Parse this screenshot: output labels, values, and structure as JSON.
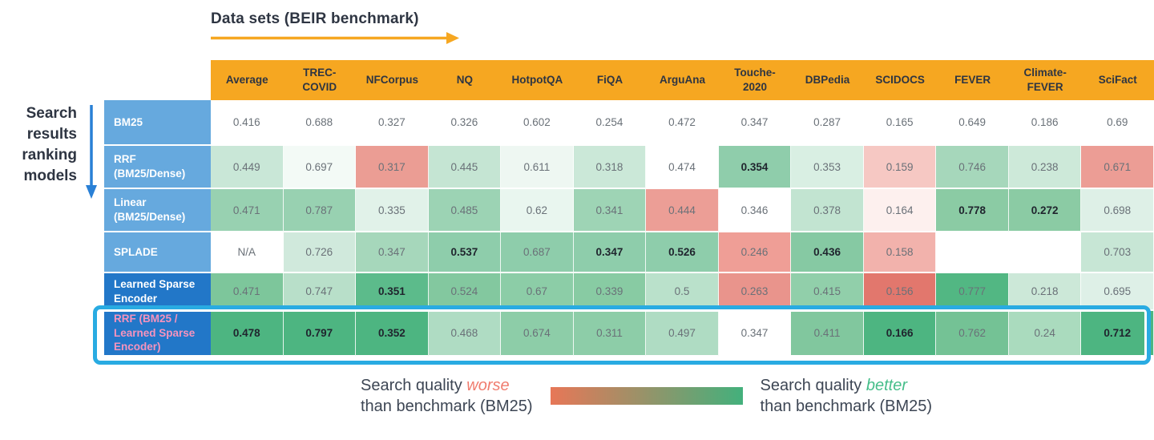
{
  "colors": {
    "header_bg": "#F6A721",
    "header_text": "#2E3542",
    "label_bg_light": "#66A9DE",
    "label_bg_dark": "#2277C8",
    "label_text": "#FFFFFF",
    "label_text_pink": "#F693BD",
    "highlight_border": "#29ABE2",
    "value_text": "#6A7178",
    "value_text_bold": "#20252E",
    "top_arrow": "#F6A721",
    "left_arrow": "#2980D6",
    "legend_text": "#3D4654",
    "legend_worse": "#F07C6E",
    "legend_better": "#46BE8A",
    "gradient_start": "#E77757",
    "gradient_end": "#43B07C"
  },
  "top_axis": {
    "title": "Data sets (BEIR benchmark)"
  },
  "left_axis": {
    "title": "Search results ranking models"
  },
  "legend": {
    "worse": {
      "prefix": "Search quality ",
      "word": "worse",
      "suffix": "than benchmark (BM25)"
    },
    "better": {
      "prefix": "Search quality ",
      "word": "better",
      "suffix": "than benchmark (BM25)"
    }
  },
  "chart_data": {
    "type": "heatmap",
    "title": "Data sets (BEIR benchmark)",
    "row_axis_label": "Search results ranking models",
    "benchmark_note": "Cell color encodes search quality vs BM25 benchmark (red = worse, green = better)",
    "columns": [
      "Average",
      "TREC-COVID",
      "NFCorpus",
      "NQ",
      "HotpotQA",
      "FiQA",
      "ArguAna",
      "Touche-2020",
      "DBPedia",
      "SCIDOCS",
      "FEVER",
      "Climate-FEVER",
      "SciFact"
    ],
    "highlighted_row": "RRF (BM25 / Learned Sparse Encoder)",
    "rows": [
      {
        "label": "BM25",
        "label_style": "light",
        "label_pink": false,
        "cells": [
          {
            "v": "0.416",
            "c": "#FFFFFF",
            "b": false
          },
          {
            "v": "0.688",
            "c": "#FFFFFF",
            "b": false
          },
          {
            "v": "0.327",
            "c": "#FFFFFF",
            "b": false
          },
          {
            "v": "0.326",
            "c": "#FFFFFF",
            "b": false
          },
          {
            "v": "0.602",
            "c": "#FFFFFF",
            "b": false
          },
          {
            "v": "0.254",
            "c": "#FFFFFF",
            "b": false
          },
          {
            "v": "0.472",
            "c": "#FFFFFF",
            "b": false
          },
          {
            "v": "0.347",
            "c": "#FFFFFF",
            "b": false
          },
          {
            "v": "0.287",
            "c": "#FFFFFF",
            "b": false
          },
          {
            "v": "0.165",
            "c": "#FFFFFF",
            "b": false
          },
          {
            "v": "0.649",
            "c": "#FFFFFF",
            "b": false
          },
          {
            "v": "0.186",
            "c": "#FFFFFF",
            "b": false
          },
          {
            "v": "0.69",
            "c": "#FFFFFF",
            "b": false
          }
        ]
      },
      {
        "label": "RRF (BM25/Dense)",
        "label_style": "light",
        "label_pink": false,
        "cells": [
          {
            "v": "0.449",
            "c": "#C9E7D7",
            "b": false
          },
          {
            "v": "0.697",
            "c": "#F3FAF6",
            "b": false
          },
          {
            "v": "0.317",
            "c": "#EB9D94",
            "b": false
          },
          {
            "v": "0.445",
            "c": "#C5E5D3",
            "b": false
          },
          {
            "v": "0.611",
            "c": "#EEF7F2",
            "b": false
          },
          {
            "v": "0.318",
            "c": "#CBE8D8",
            "b": false
          },
          {
            "v": "0.474",
            "c": "#FFFFFF",
            "b": false
          },
          {
            "v": "0.354",
            "c": "#8FCDAB",
            "b": true
          },
          {
            "v": "0.353",
            "c": "#D9EFE3",
            "b": false
          },
          {
            "v": "0.159",
            "c": "#F6C8C3",
            "b": false
          },
          {
            "v": "0.746",
            "c": "#A6D7BB",
            "b": false
          },
          {
            "v": "0.238",
            "c": "#CDE9D9",
            "b": false
          },
          {
            "v": "0.671",
            "c": "#EC9D95",
            "b": false
          }
        ]
      },
      {
        "label": "Linear (BM25/Dense)",
        "label_style": "light",
        "label_pink": false,
        "cells": [
          {
            "v": "0.471",
            "c": "#98D1B1",
            "b": false
          },
          {
            "v": "0.787",
            "c": "#98D1B1",
            "b": false
          },
          {
            "v": "0.335",
            "c": "#E1F2E9",
            "b": false
          },
          {
            "v": "0.485",
            "c": "#9CD3B4",
            "b": false
          },
          {
            "v": "0.62",
            "c": "#E9F6EF",
            "b": false
          },
          {
            "v": "0.341",
            "c": "#9ED4B5",
            "b": false
          },
          {
            "v": "0.444",
            "c": "#EC9E96",
            "b": false
          },
          {
            "v": "0.346",
            "c": "#FFFFFF",
            "b": false
          },
          {
            "v": "0.378",
            "c": "#C2E4D1",
            "b": false
          },
          {
            "v": "0.164",
            "c": "#FDF0EE",
            "b": false
          },
          {
            "v": "0.778",
            "c": "#8BCBA4",
            "b": true
          },
          {
            "v": "0.272",
            "c": "#8BCBA4",
            "b": true
          },
          {
            "v": "0.698",
            "c": "#DEF0E7",
            "b": false
          }
        ]
      },
      {
        "label": "SPLADE",
        "label_style": "light",
        "label_pink": false,
        "cells": [
          {
            "v": "N/A",
            "c": "#FFFFFF",
            "b": false
          },
          {
            "v": "0.726",
            "c": "#D0E9DC",
            "b": false
          },
          {
            "v": "0.347",
            "c": "#A6D7BB",
            "b": false
          },
          {
            "v": "0.537",
            "c": "#8ECDAB",
            "b": true
          },
          {
            "v": "0.687",
            "c": "#8ECDAB",
            "b": false
          },
          {
            "v": "0.347",
            "c": "#8ECDAB",
            "b": true
          },
          {
            "v": "0.526",
            "c": "#8ECDAB",
            "b": true
          },
          {
            "v": "0.246",
            "c": "#EF9E96",
            "b": false
          },
          {
            "v": "0.436",
            "c": "#86C9A3",
            "b": true
          },
          {
            "v": "0.158",
            "c": "#F2B2AC",
            "b": false
          },
          {
            "v": "",
            "c": "#FFFFFF",
            "b": false
          },
          {
            "v": "",
            "c": "#FFFFFF",
            "b": false
          },
          {
            "v": "0.703",
            "c": "#C7E6D5",
            "b": false
          }
        ]
      },
      {
        "label": "Learned Sparse Encoder",
        "label_style": "dark",
        "label_pink": false,
        "cells": [
          {
            "v": "0.471",
            "c": "#7DC69B",
            "b": false
          },
          {
            "v": "0.747",
            "c": "#B8DFC9",
            "b": false
          },
          {
            "v": "0.351",
            "c": "#5CBB8B",
            "b": true
          },
          {
            "v": "0.524",
            "c": "#83C89F",
            "b": false
          },
          {
            "v": "0.67",
            "c": "#8CCDA7",
            "b": false
          },
          {
            "v": "0.339",
            "c": "#88CBA3",
            "b": false
          },
          {
            "v": "0.5",
            "c": "#BAE1CB",
            "b": false
          },
          {
            "v": "0.263",
            "c": "#E9948C",
            "b": false
          },
          {
            "v": "0.415",
            "c": "#91CFAA",
            "b": false
          },
          {
            "v": "0.156",
            "c": "#E2776D",
            "b": false
          },
          {
            "v": "0.777",
            "c": "#52B783",
            "b": false
          },
          {
            "v": "0.218",
            "c": "#CCE8D8",
            "b": false
          },
          {
            "v": "0.695",
            "c": "#DEF0E7",
            "b": false
          }
        ]
      },
      {
        "label": "RRF (BM25 / Learned Sparse Encoder)",
        "label_style": "dark",
        "label_pink": true,
        "cells": [
          {
            "v": "0.478",
            "c": "#4DB581",
            "b": true
          },
          {
            "v": "0.797",
            "c": "#4DB581",
            "b": true
          },
          {
            "v": "0.352",
            "c": "#4DB581",
            "b": true
          },
          {
            "v": "0.468",
            "c": "#AFDCC3",
            "b": false
          },
          {
            "v": "0.674",
            "c": "#8DCDA8",
            "b": false
          },
          {
            "v": "0.311",
            "c": "#8DCDA8",
            "b": false
          },
          {
            "v": "0.497",
            "c": "#AFDCC3",
            "b": false
          },
          {
            "v": "0.347",
            "c": "#FFFFFF",
            "b": false
          },
          {
            "v": "0.411",
            "c": "#81C79E",
            "b": false
          },
          {
            "v": "0.166",
            "c": "#4DB581",
            "b": true
          },
          {
            "v": "0.762",
            "c": "#74C295",
            "b": false
          },
          {
            "v": "0.24",
            "c": "#AADBBE",
            "b": false
          },
          {
            "v": "0.712",
            "c": "#4DB581",
            "b": true
          }
        ]
      }
    ]
  }
}
